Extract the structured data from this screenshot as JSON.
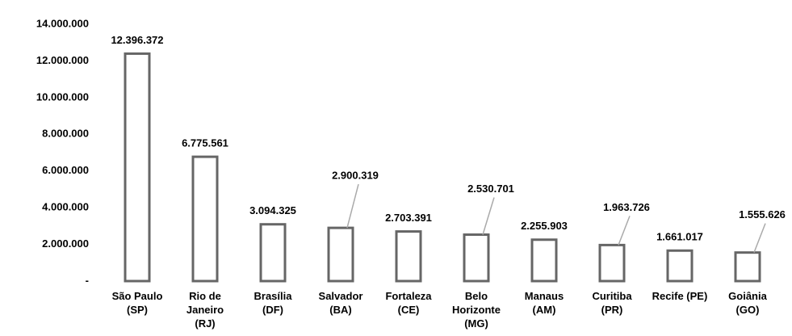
{
  "chart_data": {
    "type": "bar",
    "categories": [
      "São Paulo\n(SP)",
      "Rio de\nJaneiro\n(RJ)",
      "Brasília\n(DF)",
      "Salvador\n(BA)",
      "Fortaleza\n(CE)",
      "Belo\nHorizonte\n(MG)",
      "Manaus\n(AM)",
      "Curitiba\n(PR)",
      "Recife (PE)",
      "Goiânia\n(GO)"
    ],
    "values": [
      12396372,
      6775561,
      3094325,
      2900319,
      2703391,
      2530701,
      2255903,
      1963726,
      1661017,
      1555626
    ],
    "value_labels": [
      "12.396.372",
      "6.775.561",
      "3.094.325",
      "2.900.319",
      "2.703.391",
      "2.530.701",
      "2.255.903",
      "1.963.726",
      "1.661.017",
      "1.555.626"
    ],
    "color": "#666666",
    "ylim": [
      0,
      14000000
    ],
    "yticks": [
      {
        "value": 0,
        "label": "-"
      },
      {
        "value": 2000000,
        "label": "2.000.000"
      },
      {
        "value": 4000000,
        "label": "4.000.000"
      },
      {
        "value": 6000000,
        "label": "6.000.000"
      },
      {
        "value": 8000000,
        "label": "8.000.000"
      },
      {
        "value": 10000000,
        "label": "10.000.000"
      },
      {
        "value": 12000000,
        "label": "12.000.000"
      },
      {
        "value": 14000000,
        "label": "14.000.000"
      }
    ],
    "grid": false
  }
}
